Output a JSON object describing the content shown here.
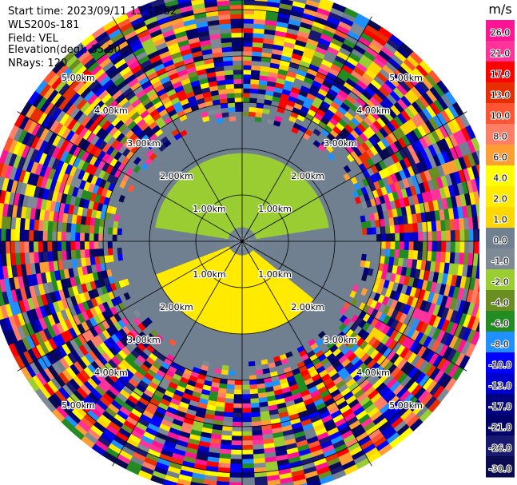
{
  "info": {
    "start_time": "Start time: 2023/09/11 13:47:52",
    "instrument": "WLS200s-181",
    "field": "Field: VEL",
    "elevation": "Elevation(deg): 35.30",
    "nrays": "NRays: 120"
  },
  "chart_data": {
    "type": "heatmap",
    "projection": "polar-ppi",
    "field": "VEL",
    "unit": "m/s",
    "range_rings_km": [
      1.0,
      2.0,
      3.0,
      4.0,
      5.0
    ],
    "ring_labels": [
      "1.00km",
      "2.00km",
      "3.00km",
      "4.00km",
      "5.00km"
    ],
    "max_range_km": 5.6,
    "n_rays": 120,
    "azimuth_lines_deg": [
      0,
      30,
      60,
      90,
      120,
      150,
      180,
      210,
      240,
      270,
      300,
      330
    ],
    "features": [
      {
        "description": "near-zero velocities close to radar",
        "range_km": [
          0.0,
          0.35
        ],
        "value": 0
      },
      {
        "description": "receding flow to the north",
        "azimuth_deg": [
          280,
          80
        ],
        "range_km": [
          0.35,
          1.9
        ],
        "value": -2
      },
      {
        "description": "approaching flow to the south-west",
        "azimuth_deg": [
          130,
          250
        ],
        "range_km": [
          0.35,
          2.0
        ],
        "value": 2
      },
      {
        "description": "near-zero ring",
        "range_km": [
          1.9,
          2.7
        ],
        "value": 0
      },
      {
        "description": "noise beyond signal",
        "range_km": [
          3.0,
          5.6
        ],
        "value": "random"
      }
    ],
    "colorbar": {
      "label": "m/s",
      "ticks": [
        "26.0",
        "21.0",
        "17.0",
        "13.0",
        "10.0",
        "8.0",
        "6.0",
        "4.0",
        "2.0",
        "1.0",
        "0.0",
        "-1.0",
        "-2.0",
        "-4.0",
        "-6.0",
        "-8.0",
        "-10.0",
        "-13.0",
        "-17.0",
        "-21.0",
        "-26.0",
        "-30.0"
      ],
      "colors": [
        "#ff1493",
        "#ff3399",
        "#ff0000",
        "#e62e00",
        "#ff5533",
        "#ff7f66",
        "#ff9f33",
        "#ffff00",
        "#ffea00",
        "#ffd700",
        "#708090",
        "#7e8a96",
        "#9acd32",
        "#6b8e23",
        "#228b22",
        "#1e90ff",
        "#0000ff",
        "#0000cd",
        "#000080",
        "#00006b",
        "#191970",
        "#0a0a50"
      ]
    }
  }
}
